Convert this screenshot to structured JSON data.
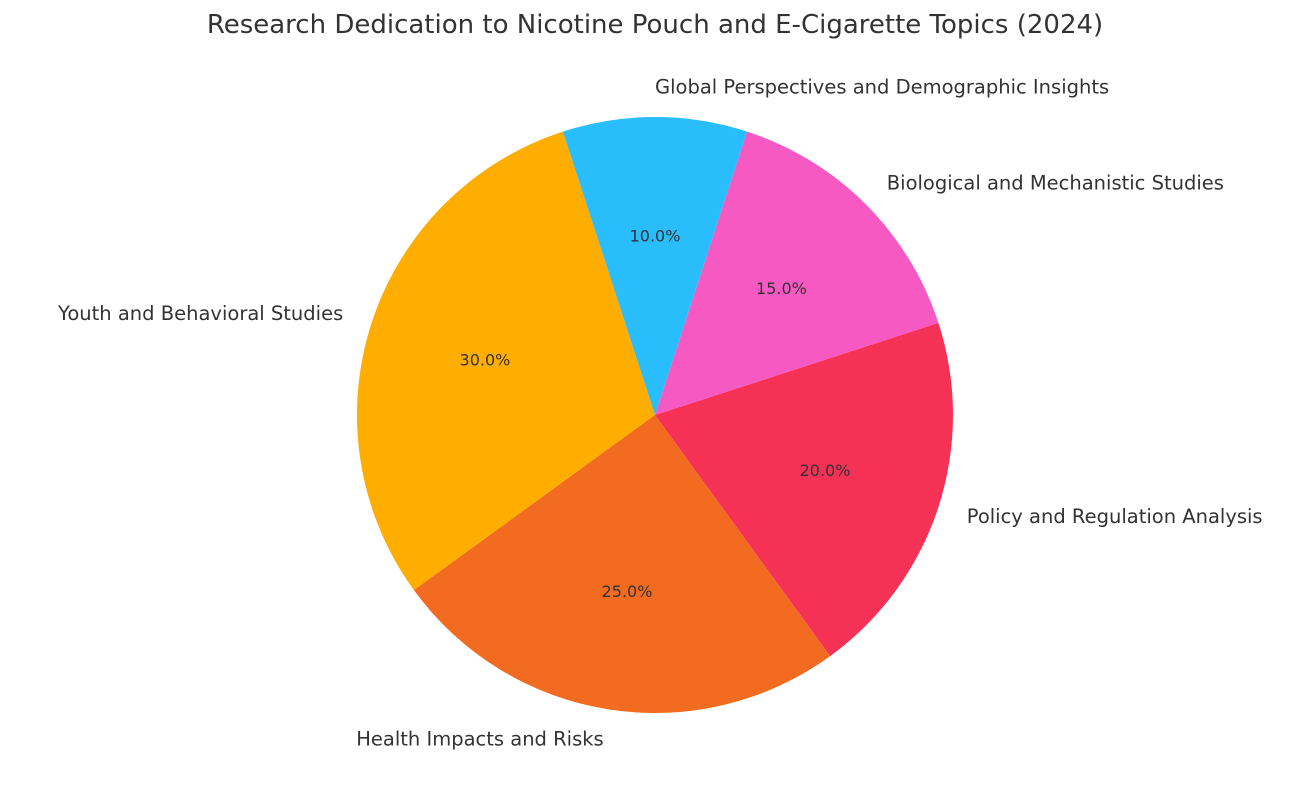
{
  "chart_data": {
    "type": "pie",
    "title": "Research Dedication to Nicotine Pouch and E-Cigarette Topics (2024)",
    "start_angle_deg": 108,
    "direction": "counterclockwise",
    "slices": [
      {
        "label": "Youth and Behavioral Studies",
        "value": 30.0,
        "pct_label": "30.0%",
        "color": "#FFAE00"
      },
      {
        "label": "Health Impacts and Risks",
        "value": 25.0,
        "pct_label": "25.0%",
        "color": "#F26B21"
      },
      {
        "label": "Policy and Regulation Analysis",
        "value": 20.0,
        "pct_label": "20.0%",
        "color": "#F53155"
      },
      {
        "label": "Biological and Mechanistic Studies",
        "value": 15.0,
        "pct_label": "15.0%",
        "color": "#F759C2"
      },
      {
        "label": "Global Perspectives and Demographic Insights",
        "value": 10.0,
        "pct_label": "10.0%",
        "color": "#2ABDFB"
      }
    ]
  }
}
